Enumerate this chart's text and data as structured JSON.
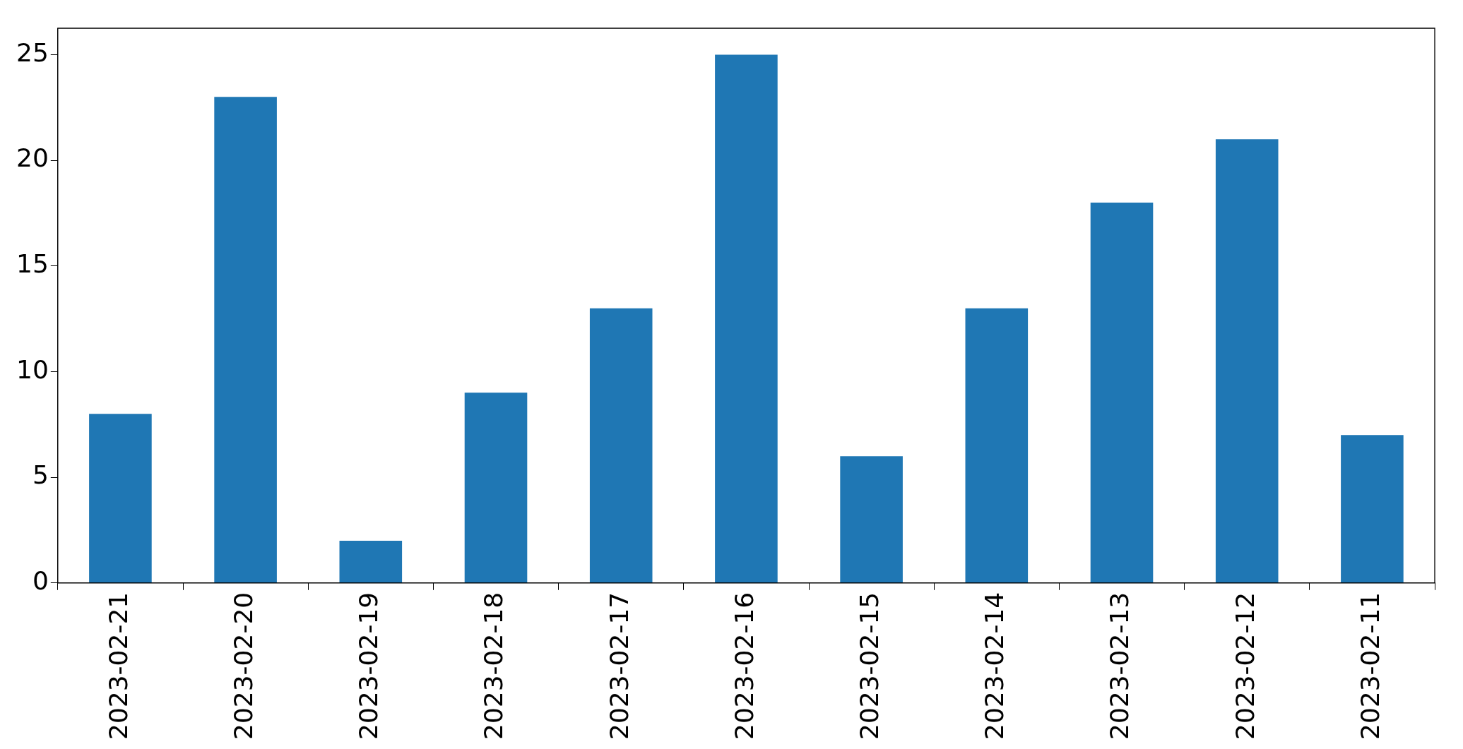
{
  "chart_data": {
    "type": "bar",
    "categories": [
      "2023-02-21",
      "2023-02-20",
      "2023-02-19",
      "2023-02-18",
      "2023-02-17",
      "2023-02-16",
      "2023-02-15",
      "2023-02-14",
      "2023-02-13",
      "2023-02-12",
      "2023-02-11"
    ],
    "values": [
      8,
      23,
      2,
      9,
      13,
      25,
      6,
      13,
      18,
      21,
      7
    ],
    "color": "#1f77b4",
    "ylim": [
      0,
      26.25
    ],
    "yticks": [
      0,
      5,
      10,
      15,
      20,
      25
    ],
    "grid": false,
    "legend": false
  }
}
